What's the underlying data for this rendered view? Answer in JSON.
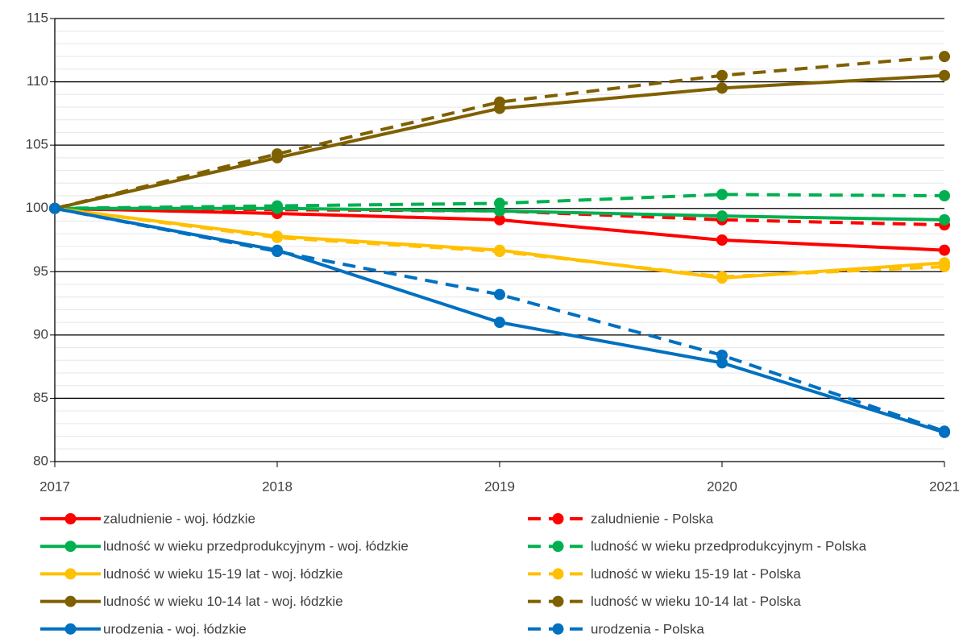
{
  "chart_data": {
    "type": "line",
    "x": [
      2017,
      2018,
      2019,
      2020,
      2021
    ],
    "xlim": [
      2017,
      2021
    ],
    "xticks": [
      2017,
      2018,
      2019,
      2020,
      2021
    ],
    "ylim": [
      80,
      115
    ],
    "yticks": [
      80,
      85,
      90,
      95,
      100,
      105,
      110,
      115
    ],
    "grid": true,
    "minor_grid": 1,
    "series": [
      {
        "name": "zaludnienie - woj. łódzkie",
        "color": "#ff0000",
        "dash": false,
        "values": [
          100,
          99.6,
          99.1,
          97.5,
          96.7
        ]
      },
      {
        "name": "zaludnienie - Polska",
        "color": "#ff0000",
        "dash": true,
        "values": [
          100,
          99.9,
          99.8,
          99.1,
          98.7
        ]
      },
      {
        "name": "ludność w wieku przedprodukcyjnym - woj. łódzkie",
        "color": "#00b050",
        "dash": false,
        "values": [
          100,
          100.0,
          99.8,
          99.4,
          99.1
        ]
      },
      {
        "name": "ludność w wieku przedprodukcyjnym - Polska",
        "color": "#00b050",
        "dash": true,
        "values": [
          100,
          100.2,
          100.4,
          101.1,
          101.0
        ]
      },
      {
        "name": "ludność w wieku 15-19 lat - woj. łódzkie",
        "color": "#ffc000",
        "dash": false,
        "values": [
          100,
          97.8,
          96.7,
          94.5,
          95.7
        ]
      },
      {
        "name": "ludność w wieku 15-19 lat - Polska",
        "color": "#ffc000",
        "dash": true,
        "values": [
          100,
          97.7,
          96.6,
          94.6,
          95.4
        ]
      },
      {
        "name": "ludność w wieku 10-14 lat - woj. łódzkie",
        "color": "#7f6000",
        "dash": false,
        "values": [
          100,
          104.0,
          107.9,
          109.5,
          110.5
        ]
      },
      {
        "name": "ludność w wieku 10-14 lat - Polska",
        "color": "#7f6000",
        "dash": true,
        "values": [
          100,
          104.3,
          108.4,
          110.5,
          112.0
        ]
      },
      {
        "name": "urodzenia - woj. łódzkie",
        "color": "#0070c0",
        "dash": false,
        "values": [
          100,
          96.7,
          91.0,
          87.8,
          82.3
        ]
      },
      {
        "name": "urodzenia - Polska",
        "color": "#0070c0",
        "dash": true,
        "values": [
          100,
          96.6,
          93.2,
          88.4,
          82.4
        ]
      }
    ]
  }
}
